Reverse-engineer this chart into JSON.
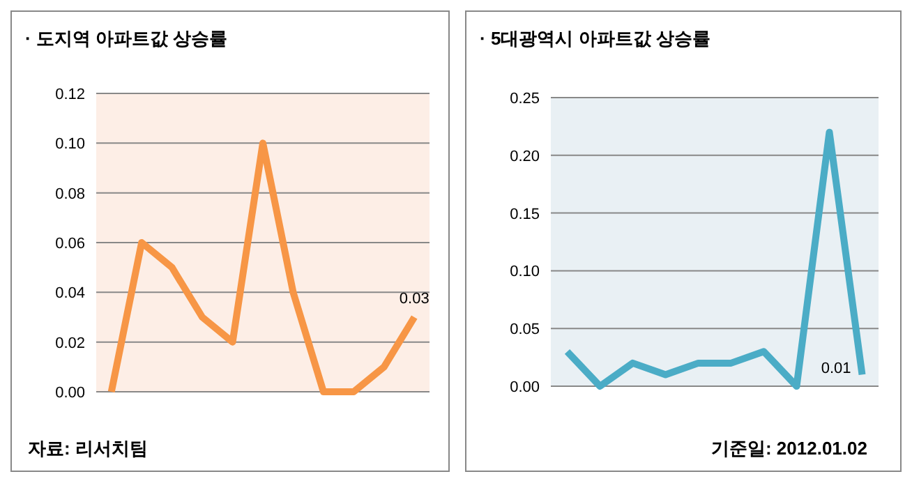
{
  "chart_data": [
    {
      "type": "line",
      "title": "· 도지역 아파트값 상승률",
      "categories": [
        null,
        null,
        null,
        null,
        null,
        null,
        null,
        null,
        null,
        null,
        null
      ],
      "series": [
        {
          "color": "#f79646",
          "values": [
            0,
            0.06,
            0.05,
            0.03,
            0.02,
            0.1,
            0.04,
            0,
            0,
            0.01,
            0.03
          ],
          "value_labels": [
            null,
            null,
            null,
            null,
            null,
            null,
            null,
            null,
            null,
            null,
            "0.03"
          ]
        }
      ],
      "ylim": [
        0,
        0.12
      ],
      "yticks": [
        {
          "value": 0,
          "label": "0.00"
        },
        {
          "value": 0.02,
          "label": "0.02"
        },
        {
          "value": 0.04,
          "label": "0.04"
        },
        {
          "value": 0.06,
          "label": "0.06"
        },
        {
          "value": 0.08,
          "label": "0.08"
        },
        {
          "value": 0.1,
          "label": "0.10"
        },
        {
          "value": 0.12,
          "label": "0.12"
        }
      ],
      "grid": "y",
      "annotations": [
        "자료: 리서치팀"
      ]
    },
    {
      "type": "line",
      "title": "· 5대광역시 아파트값 상승률",
      "categories": [
        null,
        null,
        null,
        null,
        null,
        null,
        null,
        null,
        null,
        null
      ],
      "series": [
        {
          "color": "#4bacc6",
          "values": [
            0.03,
            0,
            0.02,
            0.01,
            0.02,
            0.02,
            0.03,
            0,
            0.22,
            0.01
          ],
          "value_labels": [
            null,
            null,
            null,
            null,
            null,
            null,
            null,
            null,
            null,
            "0.01"
          ]
        }
      ],
      "ylim": [
        0,
        0.25
      ],
      "yticks": [
        {
          "value": 0,
          "label": "0.00"
        },
        {
          "value": 0.05,
          "label": "0.05"
        },
        {
          "value": 0.1,
          "label": "0.10"
        },
        {
          "value": 0.15,
          "label": "0.15"
        },
        {
          "value": 0.2,
          "label": "0.20"
        },
        {
          "value": 0.25,
          "label": "0.25"
        }
      ],
      "grid": "y",
      "annotations": [
        "기준일: 2012.01.02"
      ]
    }
  ]
}
